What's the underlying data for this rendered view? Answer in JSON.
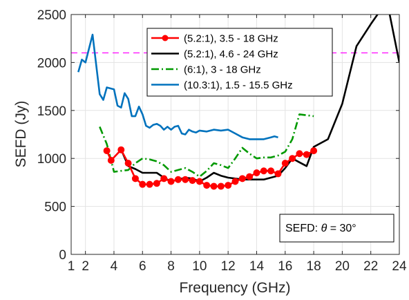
{
  "chart_data": {
    "type": "line",
    "xlabel": "Frequency (GHz)",
    "ylabel": "SEFD (Jy)",
    "xlim": [
      1,
      24
    ],
    "ylim": [
      0,
      2500
    ],
    "xticks": [
      1,
      2,
      4,
      6,
      8,
      10,
      12,
      14,
      16,
      18,
      20,
      22,
      24
    ],
    "xtick_labels": [
      "1",
      "2",
      "4",
      "6",
      "8",
      "10",
      "12",
      "14",
      "16",
      "18",
      "20",
      "22",
      "24"
    ],
    "yticks": [
      0,
      500,
      1000,
      1500,
      2000,
      2500
    ],
    "ytick_labels": [
      "0",
      "500",
      "1000",
      "1500",
      "2000",
      "2500"
    ],
    "grid": true,
    "legend_position": "top-center",
    "reference_line": {
      "y": 2100,
      "color": "#ff00ff",
      "style": "dashed"
    },
    "annotation": {
      "prefix": "SEFD: ",
      "symbol": "θ",
      "suffix": " = 30°"
    },
    "series": [
      {
        "name": "(5.2:1), 3.5 - 18 GHz",
        "color": "#ff0000",
        "style": "solid-marker",
        "x": [
          3.5,
          3.8,
          4.5,
          5.0,
          5.5,
          6.0,
          6.5,
          7.0,
          7.5,
          8.0,
          8.5,
          9.0,
          9.5,
          10.0,
          10.5,
          11.0,
          11.5,
          12.0,
          12.5,
          13.0,
          13.5,
          14.0,
          14.5,
          15.0,
          15.5,
          16.0,
          16.5,
          17.0,
          17.5,
          18.0
        ],
        "y": [
          1080,
          980,
          1090,
          950,
          790,
          730,
          730,
          740,
          790,
          760,
          780,
          780,
          770,
          760,
          720,
          710,
          710,
          720,
          760,
          790,
          810,
          850,
          870,
          870,
          840,
          950,
          1000,
          1050,
          1040,
          1080
        ]
      },
      {
        "name": "(5.2:1), 4.6 - 24 GHz",
        "color": "#000000",
        "style": "solid",
        "x": [
          4.6,
          5.0,
          5.5,
          6.0,
          6.5,
          7.0,
          7.5,
          8.0,
          8.5,
          9.0,
          9.5,
          10.0,
          10.5,
          11.0,
          11.5,
          12.0,
          12.5,
          13.0,
          13.5,
          14.0,
          14.5,
          15.0,
          15.5,
          16.0,
          16.5,
          17.0,
          17.5,
          18.0,
          19.0,
          20.0,
          21.0,
          22.0,
          22.7,
          23.3,
          24.0
        ],
        "y": [
          1060,
          920,
          890,
          850,
          850,
          850,
          800,
          760,
          780,
          800,
          790,
          760,
          800,
          850,
          820,
          800,
          790,
          780,
          780,
          780,
          780,
          800,
          820,
          900,
          1000,
          960,
          920,
          1120,
          1200,
          1570,
          2170,
          2400,
          2550,
          2520,
          2000
        ]
      },
      {
        "name": "(6:1), 3 - 18 GHz",
        "color": "#009900",
        "style": "dash-dot",
        "x": [
          3.0,
          3.5,
          4.0,
          4.5,
          5.0,
          5.5,
          6.0,
          6.5,
          7.0,
          7.5,
          8.0,
          8.5,
          9.0,
          9.5,
          10.0,
          10.5,
          11.0,
          11.5,
          12.0,
          12.5,
          13.0,
          13.5,
          14.0,
          14.5,
          15.0,
          15.5,
          16.0,
          16.5,
          17.0,
          17.5,
          18.0
        ],
        "y": [
          1330,
          1150,
          860,
          870,
          880,
          950,
          1000,
          990,
          970,
          930,
          860,
          880,
          900,
          860,
          810,
          870,
          950,
          930,
          900,
          1000,
          1110,
          1050,
          1000,
          1010,
          1010,
          1030,
          1070,
          1200,
          1460,
          1450,
          1440
        ]
      },
      {
        "name": "(10.3:1), 1.5 - 15.5 GHz",
        "color": "#0072bd",
        "style": "solid",
        "x": [
          1.5,
          1.75,
          2.0,
          2.5,
          3.0,
          3.25,
          3.5,
          4.0,
          4.25,
          4.5,
          4.75,
          5.0,
          5.25,
          5.5,
          5.75,
          6.0,
          6.25,
          6.5,
          6.75,
          7.0,
          7.25,
          7.5,
          7.75,
          8.0,
          8.25,
          8.5,
          8.75,
          9.0,
          9.25,
          9.5,
          9.75,
          10.0,
          10.5,
          11.0,
          11.5,
          12.0,
          12.5,
          13.0,
          13.5,
          14.0,
          14.5,
          15.0,
          15.25,
          15.5
        ],
        "y": [
          1900,
          2030,
          2000,
          2290,
          1670,
          1610,
          1740,
          1720,
          1550,
          1530,
          1680,
          1620,
          1440,
          1440,
          1540,
          1460,
          1340,
          1320,
          1350,
          1360,
          1340,
          1300,
          1330,
          1300,
          1330,
          1340,
          1260,
          1250,
          1300,
          1280,
          1270,
          1290,
          1280,
          1300,
          1290,
          1300,
          1260,
          1220,
          1200,
          1200,
          1200,
          1220,
          1230,
          1220
        ]
      }
    ]
  }
}
